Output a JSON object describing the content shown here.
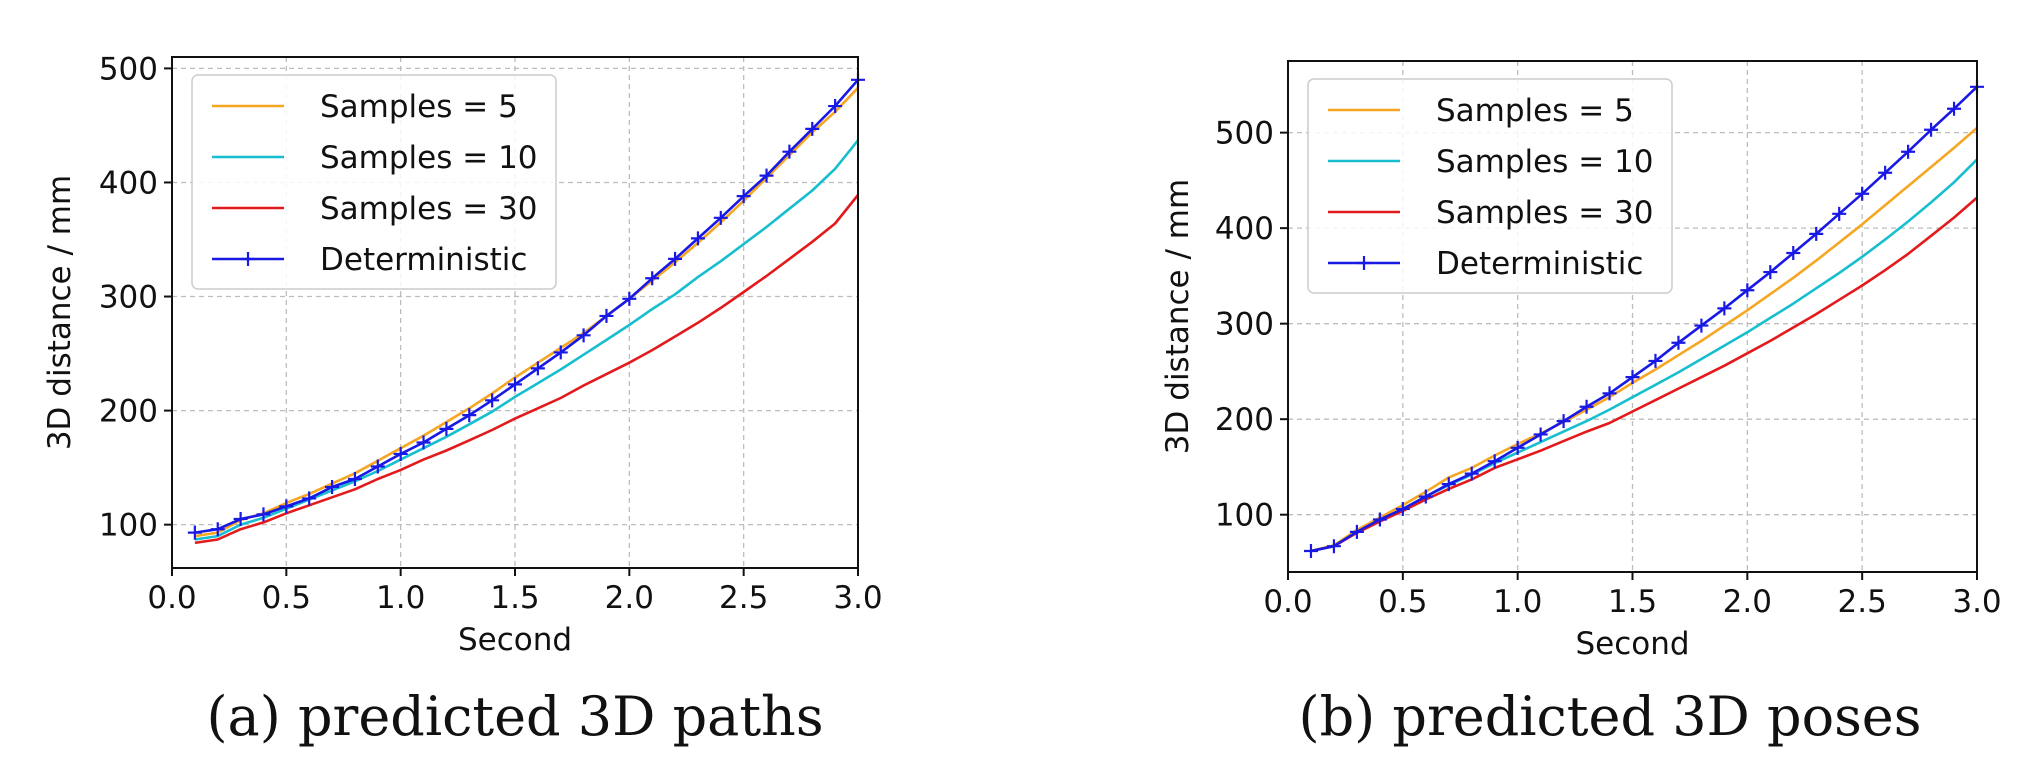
{
  "chart_data": [
    {
      "type": "line",
      "caption": "(a) predicted 3D paths",
      "xlabel": "Second",
      "ylabel": "3D distance / mm",
      "xlim": [
        0.0,
        3.0
      ],
      "ylim": [
        62,
        510
      ],
      "xticks": [
        "0.0",
        "0.5",
        "1.0",
        "1.5",
        "2.0",
        "2.5",
        "3.0"
      ],
      "yticks": [
        "100",
        "200",
        "300",
        "400",
        "500"
      ],
      "grid": true,
      "legend_position": "top-left",
      "x": [
        0.1,
        0.2,
        0.3,
        0.4,
        0.5,
        0.6,
        0.7,
        0.8,
        0.9,
        1.0,
        1.1,
        1.2,
        1.3,
        1.4,
        1.5,
        1.6,
        1.7,
        1.8,
        1.9,
        2.0,
        2.1,
        2.2,
        2.3,
        2.4,
        2.5,
        2.6,
        2.7,
        2.8,
        2.9,
        3.0
      ],
      "series": [
        {
          "name": "Samples = 5",
          "color": "#f5a623",
          "marker": false,
          "values": [
            90,
            93,
            104,
            110,
            119,
            127,
            136,
            145,
            156,
            167,
            178,
            190,
            202,
            215,
            229,
            242,
            255,
            268,
            283,
            298,
            314,
            330,
            347,
            365,
            384,
            404,
            424,
            444,
            462,
            483
          ]
        },
        {
          "name": "Samples = 10",
          "color": "#17becf",
          "marker": false,
          "values": [
            87,
            90,
            100,
            106,
            114,
            122,
            130,
            138,
            147,
            157,
            167,
            177,
            188,
            199,
            212,
            224,
            236,
            249,
            262,
            275,
            289,
            302,
            317,
            331,
            346,
            361,
            377,
            393,
            412,
            437
          ]
        },
        {
          "name": "Samples = 30",
          "color": "#e31a1c",
          "marker": false,
          "values": [
            84,
            87,
            96,
            102,
            110,
            117,
            124,
            131,
            140,
            148,
            157,
            165,
            174,
            183,
            193,
            202,
            211,
            222,
            232,
            242,
            253,
            265,
            277,
            290,
            304,
            318,
            333,
            348,
            364,
            389
          ]
        },
        {
          "name": "Deterministic",
          "color": "#1919e6",
          "marker": true,
          "values": [
            93,
            96,
            105,
            109,
            116,
            123,
            133,
            140,
            151,
            162,
            172,
            184,
            196,
            209,
            223,
            237,
            251,
            266,
            283,
            298,
            316,
            333,
            351,
            369,
            388,
            406,
            427,
            447,
            467,
            490
          ]
        }
      ]
    },
    {
      "type": "line",
      "caption": "(b) predicted 3D poses",
      "xlabel": "Second",
      "ylabel": "3D distance / mm",
      "xlim": [
        0.0,
        3.0
      ],
      "ylim": [
        40,
        575
      ],
      "xticks": [
        "0.0",
        "0.5",
        "1.0",
        "1.5",
        "2.0",
        "2.5",
        "3.0"
      ],
      "yticks": [
        "100",
        "200",
        "300",
        "400",
        "500"
      ],
      "grid": true,
      "legend_position": "top-left",
      "x": [
        0.1,
        0.2,
        0.3,
        0.4,
        0.5,
        0.6,
        0.7,
        0.8,
        0.9,
        1.0,
        1.1,
        1.2,
        1.3,
        1.4,
        1.5,
        1.6,
        1.7,
        1.8,
        1.9,
        2.0,
        2.1,
        2.2,
        2.3,
        2.4,
        2.5,
        2.6,
        2.7,
        2.8,
        2.9,
        3.0
      ],
      "series": [
        {
          "name": "Samples = 5",
          "color": "#f5a623",
          "marker": false,
          "values": [
            62,
            68,
            84,
            97,
            110,
            124,
            139,
            149,
            162,
            174,
            185,
            197,
            210,
            223,
            238,
            252,
            267,
            282,
            298,
            314,
            331,
            348,
            366,
            385,
            404,
            424,
            444,
            464,
            484,
            505
          ]
        },
        {
          "name": "Samples = 10",
          "color": "#17becf",
          "marker": false,
          "values": [
            62,
            67,
            82,
            94,
            106,
            119,
            131,
            142,
            154,
            165,
            176,
            187,
            198,
            210,
            223,
            236,
            249,
            263,
            277,
            291,
            306,
            321,
            337,
            353,
            370,
            388,
            407,
            427,
            448,
            472
          ]
        },
        {
          "name": "Samples = 30",
          "color": "#e31a1c",
          "marker": false,
          "values": [
            62,
            67,
            81,
            93,
            104,
            116,
            127,
            137,
            149,
            158,
            167,
            177,
            187,
            196,
            208,
            220,
            232,
            244,
            256,
            269,
            282,
            296,
            310,
            325,
            340,
            356,
            373,
            392,
            411,
            432
          ]
        },
        {
          "name": "Deterministic",
          "color": "#1919e6",
          "marker": true,
          "values": [
            62,
            67,
            82,
            95,
            106,
            119,
            132,
            143,
            156,
            170,
            184,
            198,
            213,
            227,
            244,
            261,
            280,
            298,
            316,
            335,
            354,
            374,
            394,
            415,
            436,
            458,
            480,
            503,
            525,
            548
          ]
        }
      ]
    }
  ]
}
